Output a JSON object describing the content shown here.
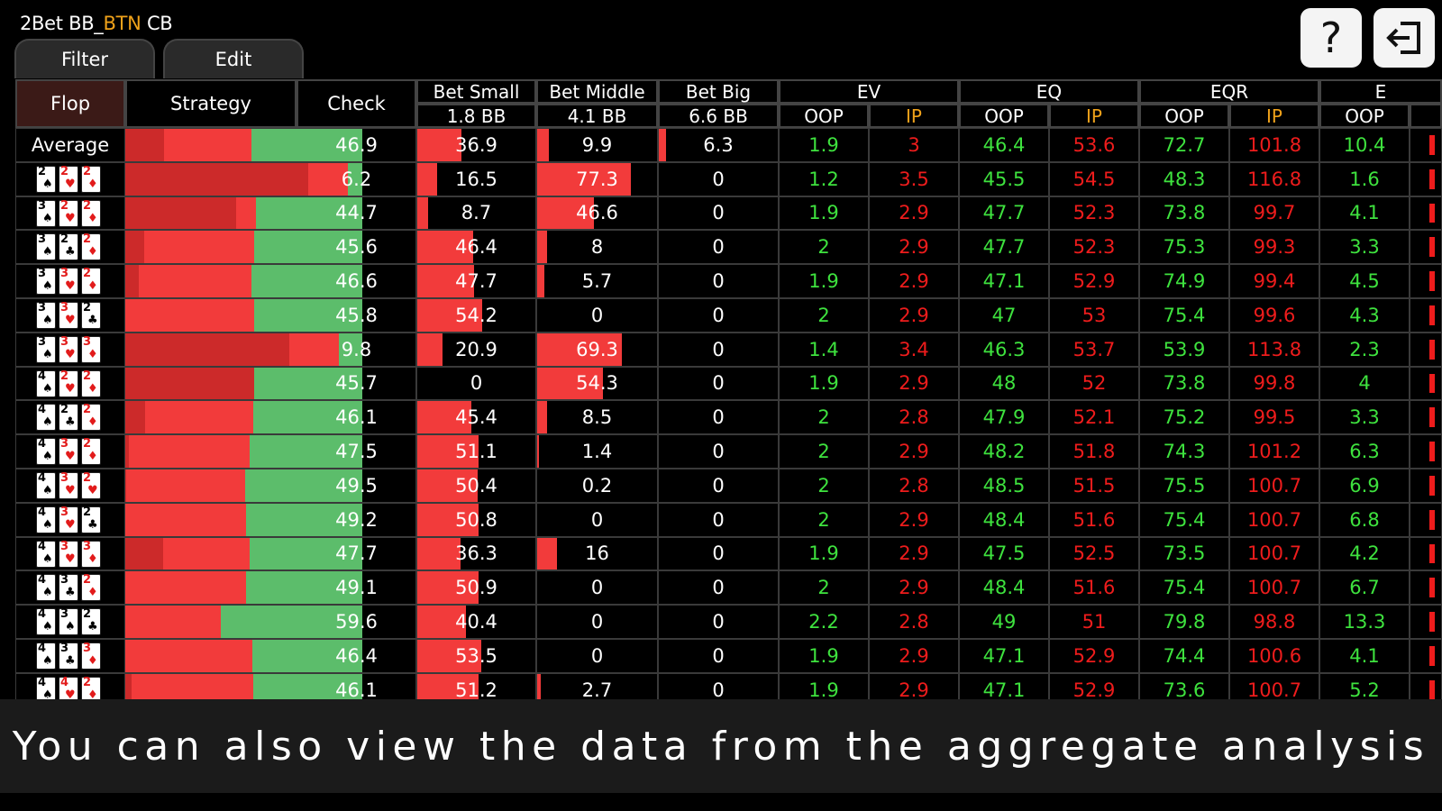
{
  "header": {
    "title_prefix": "2Bet BB_",
    "title_highlight": "BTN",
    "title_suffix": " CB"
  },
  "tabs": [
    {
      "label": "Filter"
    },
    {
      "label": "Edit"
    }
  ],
  "top_buttons": [
    {
      "icon": "help-icon",
      "label": "?"
    },
    {
      "icon": "exit-icon"
    }
  ],
  "columns": {
    "flop": "Flop",
    "strategy": "Strategy",
    "check": "Check",
    "bet_small": {
      "line1": "Bet Small",
      "line2": "1.8 BB"
    },
    "bet_middle": {
      "line1": "Bet Middle",
      "line2": "4.1 BB"
    },
    "bet_big": {
      "line1": "Bet Big",
      "line2": "6.6 BB"
    },
    "groups": [
      {
        "label": "EV",
        "oop": "OOP",
        "ip": "IP"
      },
      {
        "label": "EQ",
        "oop": "OOP",
        "ip": "IP"
      },
      {
        "label": "EQR",
        "oop": "OOP",
        "ip": "IP"
      },
      {
        "label": "E",
        "oop": "OOP",
        "ip": ""
      }
    ]
  },
  "average_label": "Average",
  "rows": [
    {
      "flop": null,
      "check": "46.9",
      "bs": "36.9",
      "bm": "9.9",
      "bb": "6.3",
      "ev_oop": "1.9",
      "ev_ip": "3",
      "eq_oop": "46.4",
      "eq_ip": "53.6",
      "eqr_oop": "72.7",
      "eqr_ip": "101.8",
      "e_oop": "10.4",
      "strat": {
        "big": 0.063,
        "mid": 0.099,
        "small": 0.369,
        "check": 0.469
      }
    },
    {
      "flop": [
        {
          "r": "2",
          "s": "♠",
          "c": "black"
        },
        {
          "r": "2",
          "s": "♥",
          "c": "red"
        },
        {
          "r": "2",
          "s": "♦",
          "c": "red"
        }
      ],
      "check": "6.2",
      "bs": "16.5",
      "bm": "77.3",
      "bb": "0",
      "ev_oop": "1.2",
      "ev_ip": "3.5",
      "eq_oop": "45.5",
      "eq_ip": "54.5",
      "eqr_oop": "48.3",
      "eqr_ip": "116.8",
      "e_oop": "1.6",
      "strat": {
        "big": 0,
        "mid": 0.773,
        "small": 0.165,
        "check": 0.062
      }
    },
    {
      "flop": [
        {
          "r": "3",
          "s": "♠",
          "c": "black"
        },
        {
          "r": "2",
          "s": "♥",
          "c": "red"
        },
        {
          "r": "2",
          "s": "♦",
          "c": "red"
        }
      ],
      "check": "44.7",
      "bs": "8.7",
      "bm": "46.6",
      "bb": "0",
      "ev_oop": "1.9",
      "ev_ip": "2.9",
      "eq_oop": "47.7",
      "eq_ip": "52.3",
      "eqr_oop": "73.8",
      "eqr_ip": "99.7",
      "e_oop": "4.1",
      "strat": {
        "big": 0,
        "mid": 0.466,
        "small": 0.087,
        "check": 0.447
      }
    },
    {
      "flop": [
        {
          "r": "3",
          "s": "♠",
          "c": "black"
        },
        {
          "r": "2",
          "s": "♣",
          "c": "black"
        },
        {
          "r": "2",
          "s": "♦",
          "c": "red"
        }
      ],
      "check": "45.6",
      "bs": "46.4",
      "bm": "8",
      "bb": "0",
      "ev_oop": "2",
      "ev_ip": "2.9",
      "eq_oop": "47.7",
      "eq_ip": "52.3",
      "eqr_oop": "75.3",
      "eqr_ip": "99.3",
      "e_oop": "3.3",
      "strat": {
        "big": 0,
        "mid": 0.08,
        "small": 0.464,
        "check": 0.456
      }
    },
    {
      "flop": [
        {
          "r": "3",
          "s": "♠",
          "c": "black"
        },
        {
          "r": "3",
          "s": "♥",
          "c": "red"
        },
        {
          "r": "2",
          "s": "♦",
          "c": "red"
        }
      ],
      "check": "46.6",
      "bs": "47.7",
      "bm": "5.7",
      "bb": "0",
      "ev_oop": "1.9",
      "ev_ip": "2.9",
      "eq_oop": "47.1",
      "eq_ip": "52.9",
      "eqr_oop": "74.9",
      "eqr_ip": "99.4",
      "e_oop": "4.5",
      "strat": {
        "big": 0,
        "mid": 0.057,
        "small": 0.477,
        "check": 0.466
      }
    },
    {
      "flop": [
        {
          "r": "3",
          "s": "♠",
          "c": "black"
        },
        {
          "r": "3",
          "s": "♥",
          "c": "red"
        },
        {
          "r": "2",
          "s": "♣",
          "c": "black"
        }
      ],
      "check": "45.8",
      "bs": "54.2",
      "bm": "0",
      "bb": "0",
      "ev_oop": "2",
      "ev_ip": "2.9",
      "eq_oop": "47",
      "eq_ip": "53",
      "eqr_oop": "75.4",
      "eqr_ip": "99.6",
      "e_oop": "4.3",
      "strat": {
        "big": 0,
        "mid": 0,
        "small": 0.542,
        "check": 0.458
      }
    },
    {
      "flop": [
        {
          "r": "3",
          "s": "♠",
          "c": "black"
        },
        {
          "r": "3",
          "s": "♥",
          "c": "red"
        },
        {
          "r": "3",
          "s": "♦",
          "c": "red"
        }
      ],
      "check": "9.8",
      "bs": "20.9",
      "bm": "69.3",
      "bb": "0",
      "ev_oop": "1.4",
      "ev_ip": "3.4",
      "eq_oop": "46.3",
      "eq_ip": "53.7",
      "eqr_oop": "53.9",
      "eqr_ip": "113.8",
      "e_oop": "2.3",
      "strat": {
        "big": 0,
        "mid": 0.693,
        "small": 0.209,
        "check": 0.098
      }
    },
    {
      "flop": [
        {
          "r": "4",
          "s": "♠",
          "c": "black"
        },
        {
          "r": "2",
          "s": "♥",
          "c": "red"
        },
        {
          "r": "2",
          "s": "♦",
          "c": "red"
        }
      ],
      "check": "45.7",
      "bs": "0",
      "bm": "54.3",
      "bb": "0",
      "ev_oop": "1.9",
      "ev_ip": "2.9",
      "eq_oop": "48",
      "eq_ip": "52",
      "eqr_oop": "73.8",
      "eqr_ip": "99.8",
      "e_oop": "4",
      "strat": {
        "big": 0,
        "mid": 0.543,
        "small": 0,
        "check": 0.457
      }
    },
    {
      "flop": [
        {
          "r": "4",
          "s": "♠",
          "c": "black"
        },
        {
          "r": "2",
          "s": "♣",
          "c": "black"
        },
        {
          "r": "2",
          "s": "♦",
          "c": "red"
        }
      ],
      "check": "46.1",
      "bs": "45.4",
      "bm": "8.5",
      "bb": "0",
      "ev_oop": "2",
      "ev_ip": "2.8",
      "eq_oop": "47.9",
      "eq_ip": "52.1",
      "eqr_oop": "75.2",
      "eqr_ip": "99.5",
      "e_oop": "3.3",
      "strat": {
        "big": 0,
        "mid": 0.085,
        "small": 0.454,
        "check": 0.461
      }
    },
    {
      "flop": [
        {
          "r": "4",
          "s": "♠",
          "c": "black"
        },
        {
          "r": "3",
          "s": "♥",
          "c": "red"
        },
        {
          "r": "2",
          "s": "♦",
          "c": "red"
        }
      ],
      "check": "47.5",
      "bs": "51.1",
      "bm": "1.4",
      "bb": "0",
      "ev_oop": "2",
      "ev_ip": "2.9",
      "eq_oop": "48.2",
      "eq_ip": "51.8",
      "eqr_oop": "74.3",
      "eqr_ip": "101.2",
      "e_oop": "6.3",
      "strat": {
        "big": 0,
        "mid": 0.014,
        "small": 0.511,
        "check": 0.475
      }
    },
    {
      "flop": [
        {
          "r": "4",
          "s": "♠",
          "c": "black"
        },
        {
          "r": "3",
          "s": "♥",
          "c": "red"
        },
        {
          "r": "2",
          "s": "♥",
          "c": "red"
        }
      ],
      "check": "49.5",
      "bs": "50.4",
      "bm": "0.2",
      "bb": "0",
      "ev_oop": "2",
      "ev_ip": "2.8",
      "eq_oop": "48.5",
      "eq_ip": "51.5",
      "eqr_oop": "75.5",
      "eqr_ip": "100.7",
      "e_oop": "6.9",
      "strat": {
        "big": 0,
        "mid": 0.002,
        "small": 0.504,
        "check": 0.495
      }
    },
    {
      "flop": [
        {
          "r": "4",
          "s": "♠",
          "c": "black"
        },
        {
          "r": "3",
          "s": "♥",
          "c": "red"
        },
        {
          "r": "2",
          "s": "♣",
          "c": "black"
        }
      ],
      "check": "49.2",
      "bs": "50.8",
      "bm": "0",
      "bb": "0",
      "ev_oop": "2",
      "ev_ip": "2.9",
      "eq_oop": "48.4",
      "eq_ip": "51.6",
      "eqr_oop": "75.4",
      "eqr_ip": "100.7",
      "e_oop": "6.8",
      "strat": {
        "big": 0,
        "mid": 0,
        "small": 0.508,
        "check": 0.492
      }
    },
    {
      "flop": [
        {
          "r": "4",
          "s": "♠",
          "c": "black"
        },
        {
          "r": "3",
          "s": "♥",
          "c": "red"
        },
        {
          "r": "3",
          "s": "♦",
          "c": "red"
        }
      ],
      "check": "47.7",
      "bs": "36.3",
      "bm": "16",
      "bb": "0",
      "ev_oop": "1.9",
      "ev_ip": "2.9",
      "eq_oop": "47.5",
      "eq_ip": "52.5",
      "eqr_oop": "73.5",
      "eqr_ip": "100.7",
      "e_oop": "4.2",
      "strat": {
        "big": 0,
        "mid": 0.16,
        "small": 0.363,
        "check": 0.477
      }
    },
    {
      "flop": [
        {
          "r": "4",
          "s": "♠",
          "c": "black"
        },
        {
          "r": "3",
          "s": "♣",
          "c": "black"
        },
        {
          "r": "2",
          "s": "♦",
          "c": "red"
        }
      ],
      "check": "49.1",
      "bs": "50.9",
      "bm": "0",
      "bb": "0",
      "ev_oop": "2",
      "ev_ip": "2.9",
      "eq_oop": "48.4",
      "eq_ip": "51.6",
      "eqr_oop": "75.4",
      "eqr_ip": "100.7",
      "e_oop": "6.7",
      "strat": {
        "big": 0,
        "mid": 0,
        "small": 0.509,
        "check": 0.491
      }
    },
    {
      "flop": [
        {
          "r": "4",
          "s": "♠",
          "c": "black"
        },
        {
          "r": "3",
          "s": "♠",
          "c": "black"
        },
        {
          "r": "2",
          "s": "♣",
          "c": "black"
        }
      ],
      "check": "59.6",
      "bs": "40.4",
      "bm": "0",
      "bb": "0",
      "ev_oop": "2.2",
      "ev_ip": "2.8",
      "eq_oop": "49",
      "eq_ip": "51",
      "eqr_oop": "79.8",
      "eqr_ip": "98.8",
      "e_oop": "13.3",
      "strat": {
        "big": 0,
        "mid": 0,
        "small": 0.404,
        "check": 0.596
      }
    },
    {
      "flop": [
        {
          "r": "4",
          "s": "♠",
          "c": "black"
        },
        {
          "r": "3",
          "s": "♣",
          "c": "black"
        },
        {
          "r": "3",
          "s": "♦",
          "c": "red"
        }
      ],
      "check": "46.4",
      "bs": "53.5",
      "bm": "0",
      "bb": "0",
      "ev_oop": "1.9",
      "ev_ip": "2.9",
      "eq_oop": "47.1",
      "eq_ip": "52.9",
      "eqr_oop": "74.4",
      "eqr_ip": "100.6",
      "e_oop": "4.1",
      "strat": {
        "big": 0,
        "mid": 0,
        "small": 0.535,
        "check": 0.464
      }
    },
    {
      "flop": [
        {
          "r": "4",
          "s": "♠",
          "c": "black"
        },
        {
          "r": "4",
          "s": "♥",
          "c": "red"
        },
        {
          "r": "2",
          "s": "♦",
          "c": "red"
        }
      ],
      "check": "46.1",
      "bs": "51.2",
      "bm": "2.7",
      "bb": "0",
      "ev_oop": "1.9",
      "ev_ip": "2.9",
      "eq_oop": "47.1",
      "eq_ip": "52.9",
      "eqr_oop": "73.6",
      "eqr_ip": "100.7",
      "e_oop": "5.2",
      "strat": {
        "big": 0,
        "mid": 0.027,
        "small": 0.512,
        "check": 0.461
      }
    }
  ],
  "caption": "You can also view the data from the aggregate analysis",
  "colors": {
    "check_green": "#5cbd6b",
    "bet_red": "#f23b3b",
    "bet_dark_red": "#cc2a2a",
    "ev_green": "#3ee23e",
    "ev_red": "#ee1c1c",
    "ip_orange": "#f0a21a",
    "flop_header_bg": "#3b1a17"
  }
}
